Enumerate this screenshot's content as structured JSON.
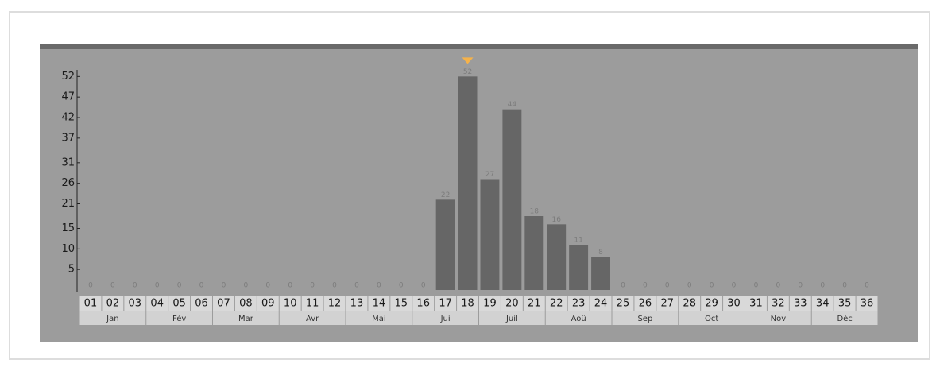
{
  "chart_data": {
    "type": "bar",
    "categories": [
      "01",
      "02",
      "03",
      "04",
      "05",
      "06",
      "07",
      "08",
      "09",
      "10",
      "11",
      "12",
      "13",
      "14",
      "15",
      "16",
      "17",
      "18",
      "19",
      "20",
      "21",
      "22",
      "23",
      "24",
      "25",
      "26",
      "27",
      "28",
      "29",
      "30",
      "31",
      "32",
      "33",
      "34",
      "35",
      "36"
    ],
    "values": [
      0,
      0,
      0,
      0,
      0,
      0,
      0,
      0,
      0,
      0,
      0,
      0,
      0,
      0,
      0,
      0,
      22,
      52,
      27,
      44,
      18,
      16,
      11,
      8,
      0,
      0,
      0,
      0,
      0,
      0,
      0,
      0,
      0,
      0,
      0,
      0
    ],
    "months": [
      "Jan",
      "Fév",
      "Mar",
      "Avr",
      "Mai",
      "Jui",
      "Juil",
      "Aoû",
      "Sep",
      "Oct",
      "Nov",
      "Déc"
    ],
    "color": "#666666",
    "ylim": [
      0,
      54
    ],
    "yticks": [
      5,
      10,
      15,
      21,
      26,
      31,
      37,
      42,
      47,
      52
    ]
  }
}
